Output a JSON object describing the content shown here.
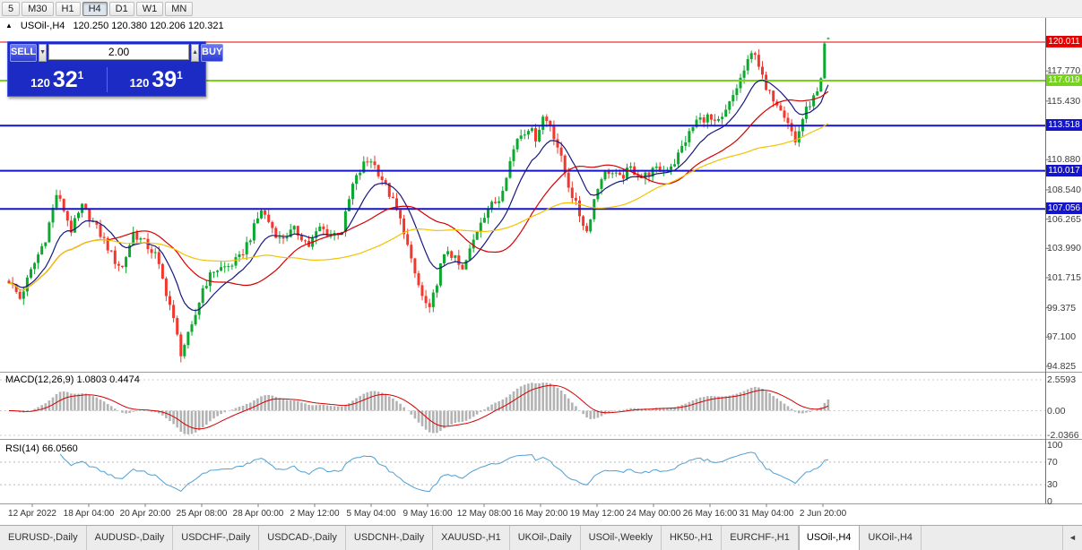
{
  "toolbar": {
    "timeframes": [
      {
        "label": "5",
        "active": false
      },
      {
        "label": "M30",
        "active": false
      },
      {
        "label": "H1",
        "active": false
      },
      {
        "label": "H4",
        "active": true
      },
      {
        "label": "D1",
        "active": false
      },
      {
        "label": "W1",
        "active": false
      },
      {
        "label": "MN",
        "active": false
      }
    ]
  },
  "chart_header": {
    "collapse_icon": "▲",
    "symbol": "USOil-,H4",
    "ohlc": "120.250 120.380 120.206 120.321"
  },
  "trade_panel": {
    "sell_label": "SELL",
    "buy_label": "BUY",
    "volume": "2.00",
    "sell_figure": "120",
    "sell_pips": "32",
    "sell_sup": "1",
    "buy_figure": "120",
    "buy_pips": "39",
    "buy_sup": "1"
  },
  "icons": {
    "spinner_down": "▼",
    "spinner_up": "▲",
    "tab_scroll_left": "◄"
  },
  "chart_data": {
    "type": "candlestick",
    "symbol": "USOil-,H4",
    "timeframe": "H4",
    "up_color": "#0ca82f",
    "down_color": "#f2382e",
    "last_bar": {
      "open": 120.25,
      "high": 120.38,
      "low": 120.206,
      "close": 120.321
    },
    "candle_count": 225,
    "noise_amp": 0.35,
    "visible_price_range": [
      94.0,
      121.9
    ],
    "y_ticks": [
      "117.770",
      "115.430",
      "110.880",
      "108.540",
      "106.265",
      "103.990",
      "101.715",
      "99.375",
      "97.100",
      "94.825"
    ],
    "x_tick_labels": [
      "12 Apr 2022",
      "18 Apr 04:00",
      "20 Apr 20:00",
      "25 Apr 08:00",
      "28 Apr 00:00",
      "2 May 12:00",
      "5 May 04:00",
      "9 May 16:00",
      "12 May 08:00",
      "16 May 20:00",
      "19 May 12:00",
      "24 May 00:00",
      "26 May 16:00",
      "31 May 04:00",
      "2 Jun 20:00"
    ],
    "horizontal_lines": [
      {
        "price": 120.011,
        "label": "120.011",
        "color": "#e60000",
        "width": 1
      },
      {
        "price": 117.019,
        "label": "117.019",
        "color": "#76d21c",
        "width": 2
      },
      {
        "price": 113.518,
        "label": "113.518",
        "color": "#1414cd",
        "width": 2
      },
      {
        "price": 110.017,
        "label": "110.017",
        "color": "#1414cd",
        "width": 2
      },
      {
        "price": 107.056,
        "label": "107.056",
        "color": "#1414cd",
        "width": 2
      }
    ],
    "ma_overlays": [
      {
        "type": "ema",
        "period": 12,
        "color": "#181880"
      },
      {
        "type": "sma",
        "period": 28,
        "color": "#d40000"
      },
      {
        "type": "sma",
        "period": 60,
        "color": "#f2c300"
      }
    ],
    "close_waypoints": [
      [
        0,
        101.5
      ],
      [
        3,
        100.1
      ],
      [
        6,
        102.2
      ],
      [
        10,
        104.8
      ],
      [
        13,
        108.2
      ],
      [
        15,
        107.0
      ],
      [
        17,
        105.4
      ],
      [
        20,
        107.2
      ],
      [
        23,
        106.0
      ],
      [
        26,
        104.6
      ],
      [
        29,
        103.0
      ],
      [
        31,
        102.5
      ],
      [
        34,
        105.2
      ],
      [
        37,
        104.4
      ],
      [
        40,
        103.5
      ],
      [
        44,
        99.6
      ],
      [
        47,
        95.9
      ],
      [
        50,
        97.8
      ],
      [
        53,
        100.9
      ],
      [
        56,
        102.3
      ],
      [
        60,
        102.6
      ],
      [
        63,
        103.2
      ],
      [
        66,
        104.9
      ],
      [
        69,
        107.0
      ],
      [
        72,
        105.6
      ],
      [
        74,
        104.7
      ],
      [
        78,
        105.4
      ],
      [
        80,
        104.9
      ],
      [
        82,
        104.2
      ],
      [
        85,
        105.6
      ],
      [
        88,
        105.0
      ],
      [
        91,
        105.4
      ],
      [
        94,
        108.9
      ],
      [
        97,
        110.5
      ],
      [
        99,
        110.9
      ],
      [
        102,
        109.4
      ],
      [
        105,
        107.6
      ],
      [
        108,
        105.4
      ],
      [
        110,
        102.9
      ],
      [
        113,
        100.2
      ],
      [
        115,
        99.1
      ],
      [
        118,
        102.6
      ],
      [
        120,
        103.9
      ],
      [
        122,
        103.1
      ],
      [
        124,
        102.2
      ],
      [
        126,
        103.8
      ],
      [
        129,
        106.2
      ],
      [
        131,
        107.1
      ],
      [
        134,
        107.8
      ],
      [
        136,
        109.8
      ],
      [
        139,
        112.6
      ],
      [
        142,
        113.4
      ],
      [
        144,
        112.6
      ],
      [
        146,
        114.2
      ],
      [
        148,
        113.6
      ],
      [
        150,
        111.9
      ],
      [
        153,
        108.9
      ],
      [
        156,
        106.6
      ],
      [
        158,
        105.3
      ],
      [
        160,
        107.8
      ],
      [
        162,
        109.6
      ],
      [
        164,
        110.0
      ],
      [
        167,
        109.4
      ],
      [
        170,
        110.2
      ],
      [
        173,
        109.5
      ],
      [
        176,
        110.0
      ],
      [
        179,
        110.1
      ],
      [
        182,
        110.7
      ],
      [
        185,
        112.4
      ],
      [
        188,
        113.9
      ],
      [
        191,
        114.2
      ],
      [
        193,
        113.6
      ],
      [
        195,
        114.0
      ],
      [
        197,
        115.2
      ],
      [
        199,
        116.5
      ],
      [
        201,
        117.8
      ],
      [
        203,
        119.0
      ],
      [
        204,
        119.3
      ],
      [
        206,
        117.2
      ],
      [
        207,
        116.2
      ],
      [
        209,
        115.7
      ],
      [
        211,
        115.0
      ],
      [
        213,
        113.9
      ],
      [
        215,
        112.2
      ],
      [
        217,
        114.1
      ],
      [
        219,
        115.3
      ],
      [
        221,
        116.0
      ],
      [
        222,
        117.2
      ],
      [
        223,
        119.9
      ],
      [
        224,
        120.321
      ]
    ],
    "indicators": [
      {
        "name": "MACD",
        "label": "MACD(12,26,9) 1.0803 0.4474",
        "params": {
          "fast": 12,
          "slow": 26,
          "signal": 9
        },
        "histogram_color": "#b3b3b3",
        "signal_color": "#d40000",
        "axis_ticks": [
          {
            "v": 2.5593,
            "label": "2.5593"
          },
          {
            "v": 0,
            "label": "0.00"
          },
          {
            "v": -2.0366,
            "label": "-2.0366"
          }
        ]
      },
      {
        "name": "RSI",
        "label": "RSI(14) 66.0560",
        "params": {
          "period": 14
        },
        "line_color": "#4d9fd6",
        "levels": [
          70,
          30
        ],
        "axis_ticks": [
          {
            "v": 100,
            "label": "100"
          },
          {
            "v": 70,
            "label": "70"
          },
          {
            "v": 30,
            "label": "30"
          },
          {
            "v": 0,
            "label": "0"
          }
        ]
      }
    ]
  },
  "tabs": {
    "items": [
      "EURUSD-,Daily",
      "AUDUSD-,Daily",
      "USDCHF-,Daily",
      "USDCAD-,Daily",
      "USDCNH-,Daily",
      "XAUUSD-,H1",
      "UKOil-,Daily",
      "USOil-,Weekly",
      "HK50-,H1",
      "EURCHF-,H1",
      "USOil-,H4",
      "UKOil-,H4"
    ],
    "active": "USOil-,H4"
  }
}
